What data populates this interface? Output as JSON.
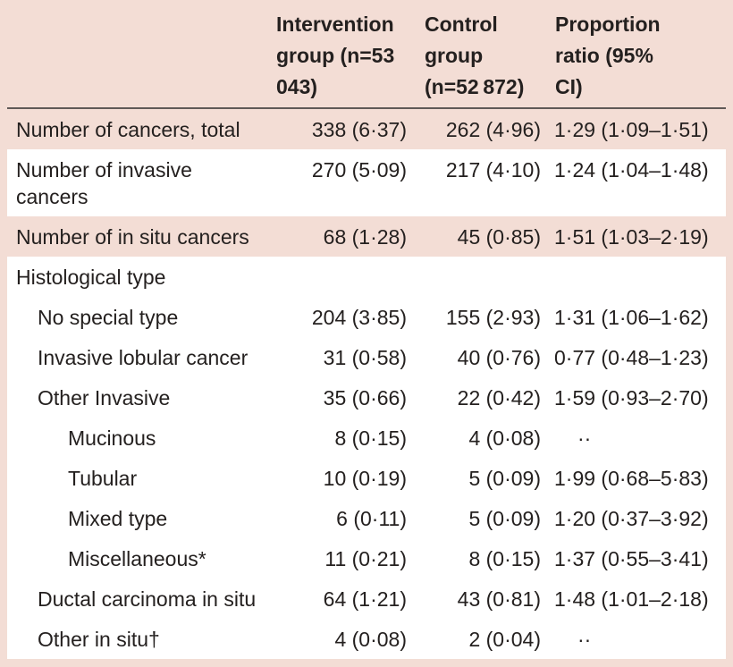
{
  "colors": {
    "background_pink": "#f3ddd5",
    "row_shade_pink": "#f3ddd5",
    "row_white": "#ffffff",
    "header_rule": "#5f5957",
    "text": "#24201f"
  },
  "header": {
    "columns": [
      "Intervention group (n=53 043)",
      "Control group (n=52 872)",
      "Proportion ratio (95% CI)"
    ]
  },
  "rows": [
    {
      "label": "Number of cancers, total",
      "intervention": "338 (6·37)",
      "control": "262 (4·96)",
      "ratio": "1·29 (1·09–1·51)",
      "indent": 0,
      "shaded": true
    },
    {
      "label": "Number of invasive cancers",
      "intervention": "270 (5·09)",
      "control": "217 (4·10)",
      "ratio": "1·24 (1·04–1·48)",
      "indent": 0,
      "shaded": false
    },
    {
      "label": "Number of in situ cancers",
      "intervention": "68 (1·28)",
      "control": "45 (0·85)",
      "ratio": "1·51 (1·03–2·19)",
      "indent": 0,
      "shaded": true
    },
    {
      "label": "Histological type",
      "intervention": "",
      "control": "",
      "ratio": "",
      "indent": 0,
      "shaded": false
    },
    {
      "label": "No special type",
      "intervention": "204 (3·85)",
      "control": "155 (2·93)",
      "ratio": "1·31 (1·06–1·62)",
      "indent": 1,
      "shaded": false
    },
    {
      "label": "Invasive lobular cancer",
      "intervention": "31 (0·58)",
      "control": "40 (0·76)",
      "ratio": "0·77 (0·48–1·23)",
      "indent": 1,
      "shaded": false
    },
    {
      "label": "Other Invasive",
      "intervention": "35 (0·66)",
      "control": "22 (0·42)",
      "ratio": "1·59 (0·93–2·70)",
      "indent": 1,
      "shaded": false
    },
    {
      "label": "Mucinous",
      "intervention": "8 (0·15)",
      "control": "4 (0·08)",
      "ratio": "··",
      "indent": 2,
      "shaded": false
    },
    {
      "label": "Tubular",
      "intervention": "10 (0·19)",
      "control": "5 (0·09)",
      "ratio": "1·99 (0·68–5·83)",
      "indent": 2,
      "shaded": false
    },
    {
      "label": "Mixed type",
      "intervention": "6 (0·11)",
      "control": "5 (0·09)",
      "ratio": "1·20 (0·37–3·92)",
      "indent": 2,
      "shaded": false
    },
    {
      "label": "Miscellaneous*",
      "intervention": "11 (0·21)",
      "control": "8 (0·15)",
      "ratio": "1·37 (0·55–3·41)",
      "indent": 2,
      "shaded": false
    },
    {
      "label": "Ductal carcinoma in situ",
      "intervention": "64 (1·21)",
      "control": "43 (0·81)",
      "ratio": "1·48 (1·01–2·18)",
      "indent": 1,
      "shaded": false
    },
    {
      "label": "Other in situ†",
      "intervention": "4 (0·08)",
      "control": "2 (0·04)",
      "ratio": "··",
      "indent": 1,
      "shaded": false
    }
  ]
}
